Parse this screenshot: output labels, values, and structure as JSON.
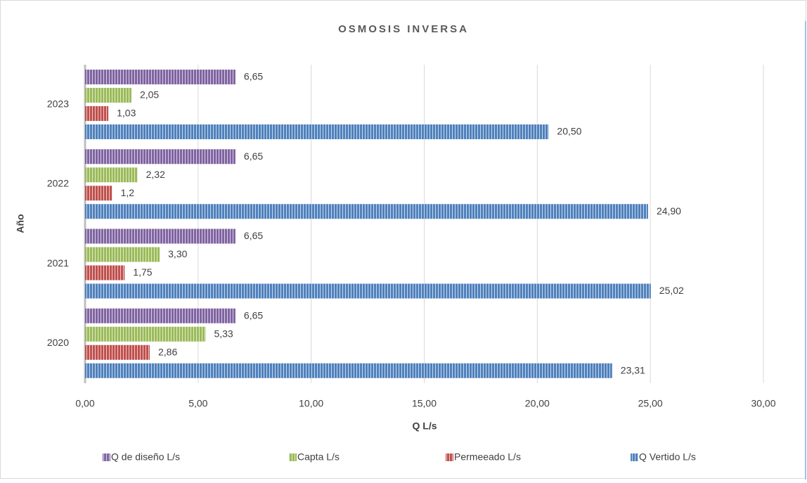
{
  "chart_data": {
    "type": "hbar",
    "title": "OSMOSIS INVERSA",
    "x_label": "Q L/s",
    "y_label": "Año",
    "categories": [
      "2020",
      "2021",
      "2022",
      "2023"
    ],
    "series": [
      {
        "name": "Q de diseño L/s",
        "color": "#8064a2",
        "values": [
          6.65,
          6.65,
          6.65,
          6.65
        ],
        "value_labels": [
          "6,65",
          "6,65",
          "6,65",
          "6,65"
        ]
      },
      {
        "name": "Capta L/s",
        "color": "#9bbb59",
        "values": [
          5.33,
          3.3,
          2.32,
          2.05
        ],
        "value_labels": [
          "5,33",
          "3,30",
          "2,32",
          "2,05"
        ]
      },
      {
        "name": "Permeeado L/s",
        "color": "#c0504d",
        "values": [
          2.86,
          1.75,
          1.2,
          1.03
        ],
        "value_labels": [
          "2,86",
          "1,75",
          "1,2",
          "1,03"
        ]
      },
      {
        "name": "Q Vertido L/s",
        "color": "#4f81bd",
        "values": [
          23.31,
          25.02,
          24.9,
          20.5
        ],
        "value_labels": [
          "23,31",
          "25,02",
          "24,90",
          "20,50"
        ]
      }
    ],
    "xlim": [
      0,
      30
    ],
    "xticks": [
      {
        "value": 0,
        "label": "0,00"
      },
      {
        "value": 5,
        "label": "5,00"
      },
      {
        "value": 10,
        "label": "10,00"
      },
      {
        "value": 15,
        "label": "15,00"
      },
      {
        "value": 20,
        "label": "20,00"
      },
      {
        "value": 25,
        "label": "25,00"
      },
      {
        "value": 30,
        "label": "30,00"
      }
    ],
    "grid": true,
    "legend": "bottom"
  }
}
